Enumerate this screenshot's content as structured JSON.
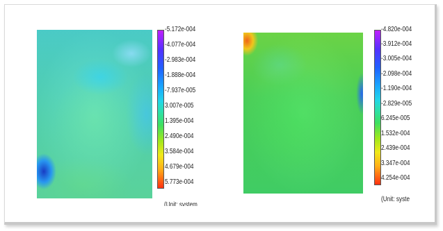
{
  "left_plot": {
    "scale_labels": [
      "-5.172e-004",
      "-4.077e-004",
      "-2.983e-004",
      "-1.888e-004",
      "-7.937e-005",
      "3.007e-005",
      "1.395e-004",
      "2.490e-004",
      "3.584e-004",
      "4.679e-004",
      "5.773e-004"
    ],
    "unit_label": "(Unit: system"
  },
  "right_plot": {
    "scale_labels": [
      "-4.820e-004",
      "-3.912e-004",
      "-3.005e-004",
      "-2.098e-004",
      "-1.190e-004",
      "-2.829e-005",
      "6.245e-005",
      "1.532e-004",
      "2.439e-004",
      "3.347e-004",
      "4.254e-004"
    ],
    "unit_label": "(Unit: syste"
  },
  "colorbar_colors": [
    "#c020ff",
    "#5530ff",
    "#2060ff",
    "#1aa8ff",
    "#22d6e8",
    "#2ee0a8",
    "#3ee060",
    "#a0e81c",
    "#f0e81a",
    "#ffb018",
    "#ff3010"
  ]
}
